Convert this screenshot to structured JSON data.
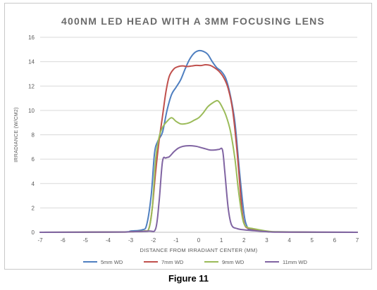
{
  "chart_data": {
    "type": "line",
    "title": "400NM LED HEAD WITH A 3MM FOCUSING LENS",
    "xlabel": "DISTANCE FROM IRRADIANT CENTER (MM)",
    "ylabel": "IRRADIANCE (W/CM2)",
    "xlim": [
      -7,
      7
    ],
    "ylim": [
      0,
      16
    ],
    "xticks": [
      "-7",
      "-6",
      "-5",
      "-4",
      "-3",
      "-2",
      "-1",
      "0",
      "1",
      "2",
      "3",
      "4",
      "5",
      "6",
      "7"
    ],
    "yticks": [
      "0",
      "2",
      "4",
      "6",
      "8",
      "10",
      "12",
      "14",
      "16"
    ],
    "grid": "horizontal",
    "legend_position": "bottom",
    "series": [
      {
        "name": "5mm WD",
        "color": "#4f7fc0",
        "points": [
          [
            -7,
            0
          ],
          [
            -3.5,
            0.02
          ],
          [
            -3,
            0.1
          ],
          [
            -2.5,
            0.2
          ],
          [
            -2.3,
            0.6
          ],
          [
            -2.1,
            3
          ],
          [
            -1.95,
            6.5
          ],
          [
            -1.8,
            7.5
          ],
          [
            -1.6,
            8.2
          ],
          [
            -1.4,
            10
          ],
          [
            -1.2,
            11.3
          ],
          [
            -1,
            11.9
          ],
          [
            -0.8,
            12.5
          ],
          [
            -0.6,
            13.4
          ],
          [
            -0.4,
            14.2
          ],
          [
            -0.2,
            14.7
          ],
          [
            0,
            14.9
          ],
          [
            0.2,
            14.85
          ],
          [
            0.4,
            14.6
          ],
          [
            0.6,
            14
          ],
          [
            0.8,
            13.5
          ],
          [
            1,
            13.2
          ],
          [
            1.2,
            12.6
          ],
          [
            1.4,
            11.2
          ],
          [
            1.6,
            9
          ],
          [
            1.8,
            5
          ],
          [
            2,
            1.5
          ],
          [
            2.15,
            0.4
          ],
          [
            2.3,
            0.2
          ],
          [
            2.6,
            0.15
          ],
          [
            3,
            0.08
          ],
          [
            3.5,
            0.02
          ],
          [
            7,
            0
          ]
        ]
      },
      {
        "name": "7mm WD",
        "color": "#c0504d",
        "points": [
          [
            -7,
            0
          ],
          [
            -3.5,
            0.02
          ],
          [
            -3,
            0.05
          ],
          [
            -2.4,
            0.1
          ],
          [
            -2.2,
            0.3
          ],
          [
            -2.05,
            2
          ],
          [
            -1.9,
            5
          ],
          [
            -1.75,
            7.5
          ],
          [
            -1.6,
            9.5
          ],
          [
            -1.45,
            11.5
          ],
          [
            -1.3,
            12.8
          ],
          [
            -1.1,
            13.4
          ],
          [
            -0.9,
            13.6
          ],
          [
            -0.7,
            13.65
          ],
          [
            -0.5,
            13.6
          ],
          [
            -0.3,
            13.65
          ],
          [
            -0.1,
            13.7
          ],
          [
            0.1,
            13.68
          ],
          [
            0.3,
            13.75
          ],
          [
            0.5,
            13.7
          ],
          [
            0.7,
            13.5
          ],
          [
            0.9,
            13.2
          ],
          [
            1.1,
            12.7
          ],
          [
            1.3,
            11.8
          ],
          [
            1.5,
            10
          ],
          [
            1.7,
            6.5
          ],
          [
            1.9,
            2
          ],
          [
            2,
            0.8
          ],
          [
            2.1,
            0.4
          ],
          [
            2.3,
            0.3
          ],
          [
            2.6,
            0.2
          ],
          [
            3,
            0.08
          ],
          [
            3.5,
            0.02
          ],
          [
            7,
            0
          ]
        ]
      },
      {
        "name": "9mm WD",
        "color": "#9bbb59",
        "points": [
          [
            -7,
            0
          ],
          [
            -3.5,
            0.02
          ],
          [
            -3,
            0.05
          ],
          [
            -2.4,
            0.1
          ],
          [
            -2.2,
            0.3
          ],
          [
            -2.05,
            2
          ],
          [
            -1.9,
            6
          ],
          [
            -1.75,
            7.8
          ],
          [
            -1.6,
            8.6
          ],
          [
            -1.4,
            9.1
          ],
          [
            -1.2,
            9.4
          ],
          [
            -1,
            9.1
          ],
          [
            -0.8,
            8.9
          ],
          [
            -0.6,
            8.9
          ],
          [
            -0.4,
            9
          ],
          [
            -0.2,
            9.2
          ],
          [
            0,
            9.4
          ],
          [
            0.2,
            9.8
          ],
          [
            0.4,
            10.3
          ],
          [
            0.6,
            10.6
          ],
          [
            0.8,
            10.8
          ],
          [
            0.9,
            10.7
          ],
          [
            1,
            10.4
          ],
          [
            1.2,
            9.6
          ],
          [
            1.4,
            8.3
          ],
          [
            1.6,
            6
          ],
          [
            1.75,
            3.5
          ],
          [
            1.9,
            1.5
          ],
          [
            2,
            0.7
          ],
          [
            2.15,
            0.4
          ],
          [
            2.4,
            0.3
          ],
          [
            3,
            0.1
          ],
          [
            3.5,
            0.04
          ],
          [
            5,
            0
          ],
          [
            7,
            0
          ]
        ]
      },
      {
        "name": "11mm WD",
        "color": "#8064a2",
        "points": [
          [
            -7,
            0
          ],
          [
            -3.5,
            0.02
          ],
          [
            -3,
            0.05
          ],
          [
            -2.2,
            0.1
          ],
          [
            -1.9,
            0.3
          ],
          [
            -1.75,
            2.5
          ],
          [
            -1.6,
            5.8
          ],
          [
            -1.45,
            6.1
          ],
          [
            -1.3,
            6.2
          ],
          [
            -1.1,
            6.6
          ],
          [
            -0.9,
            6.9
          ],
          [
            -0.7,
            7.05
          ],
          [
            -0.5,
            7.1
          ],
          [
            -0.3,
            7.1
          ],
          [
            -0.1,
            7.05
          ],
          [
            0.1,
            6.95
          ],
          [
            0.3,
            6.85
          ],
          [
            0.5,
            6.75
          ],
          [
            0.7,
            6.75
          ],
          [
            0.9,
            6.8
          ],
          [
            1.05,
            6.75
          ],
          [
            1.15,
            5
          ],
          [
            1.3,
            2
          ],
          [
            1.45,
            0.6
          ],
          [
            1.7,
            0.3
          ],
          [
            2,
            0.2
          ],
          [
            2.5,
            0.12
          ],
          [
            3,
            0.05
          ],
          [
            3.5,
            0.02
          ],
          [
            7,
            0
          ]
        ]
      }
    ]
  },
  "caption": "Figure 11"
}
